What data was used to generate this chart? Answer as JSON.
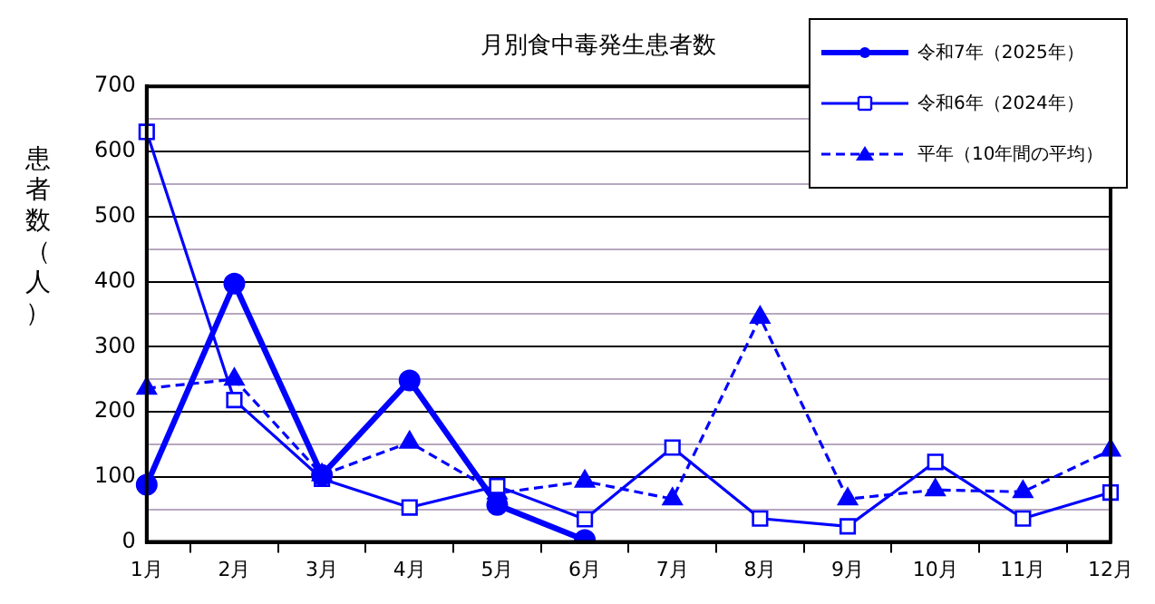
{
  "chart_data": {
    "type": "line",
    "title": "月別食中毒発生患者数",
    "ylabel": "患者数（人）",
    "categories": [
      "1月",
      "2月",
      "3月",
      "4月",
      "5月",
      "6月",
      "7月",
      "8月",
      "9月",
      "10月",
      "11月",
      "12月"
    ],
    "series": [
      {
        "name": "令和7年（2025年）",
        "color": "#0000ff",
        "marker": "circle",
        "line_style": "solid",
        "values": [
          88,
          397,
          103,
          248,
          57,
          3,
          null,
          null,
          null,
          null,
          null,
          null
        ]
      },
      {
        "name": "令和6年（2024年）",
        "color": "#0000ff",
        "marker": "square",
        "line_style": "solid",
        "values": [
          630,
          218,
          97,
          53,
          86,
          35,
          145,
          36,
          24,
          123,
          36,
          76
        ]
      },
      {
        "name": "平年（10年間の平均）",
        "color": "#0000ff",
        "marker": "triangle",
        "line_style": "dashed",
        "values": [
          236,
          250,
          103,
          153,
          75,
          93,
          66,
          345,
          66,
          80,
          77,
          141
        ]
      }
    ],
    "ylim": [
      0,
      700
    ],
    "yticks": [
      0,
      {
        "value": 50,
        "label": null
      },
      100,
      {
        "value": 150,
        "label": null
      },
      200,
      {
        "value": 250,
        "label": null
      },
      300,
      {
        "value": 350,
        "label": null
      },
      400,
      {
        "value": 450,
        "label": null
      },
      500,
      {
        "value": 550,
        "label": null
      },
      600,
      {
        "value": 650,
        "label": null
      },
      700
    ],
    "grid": "y",
    "legend": "top right"
  }
}
